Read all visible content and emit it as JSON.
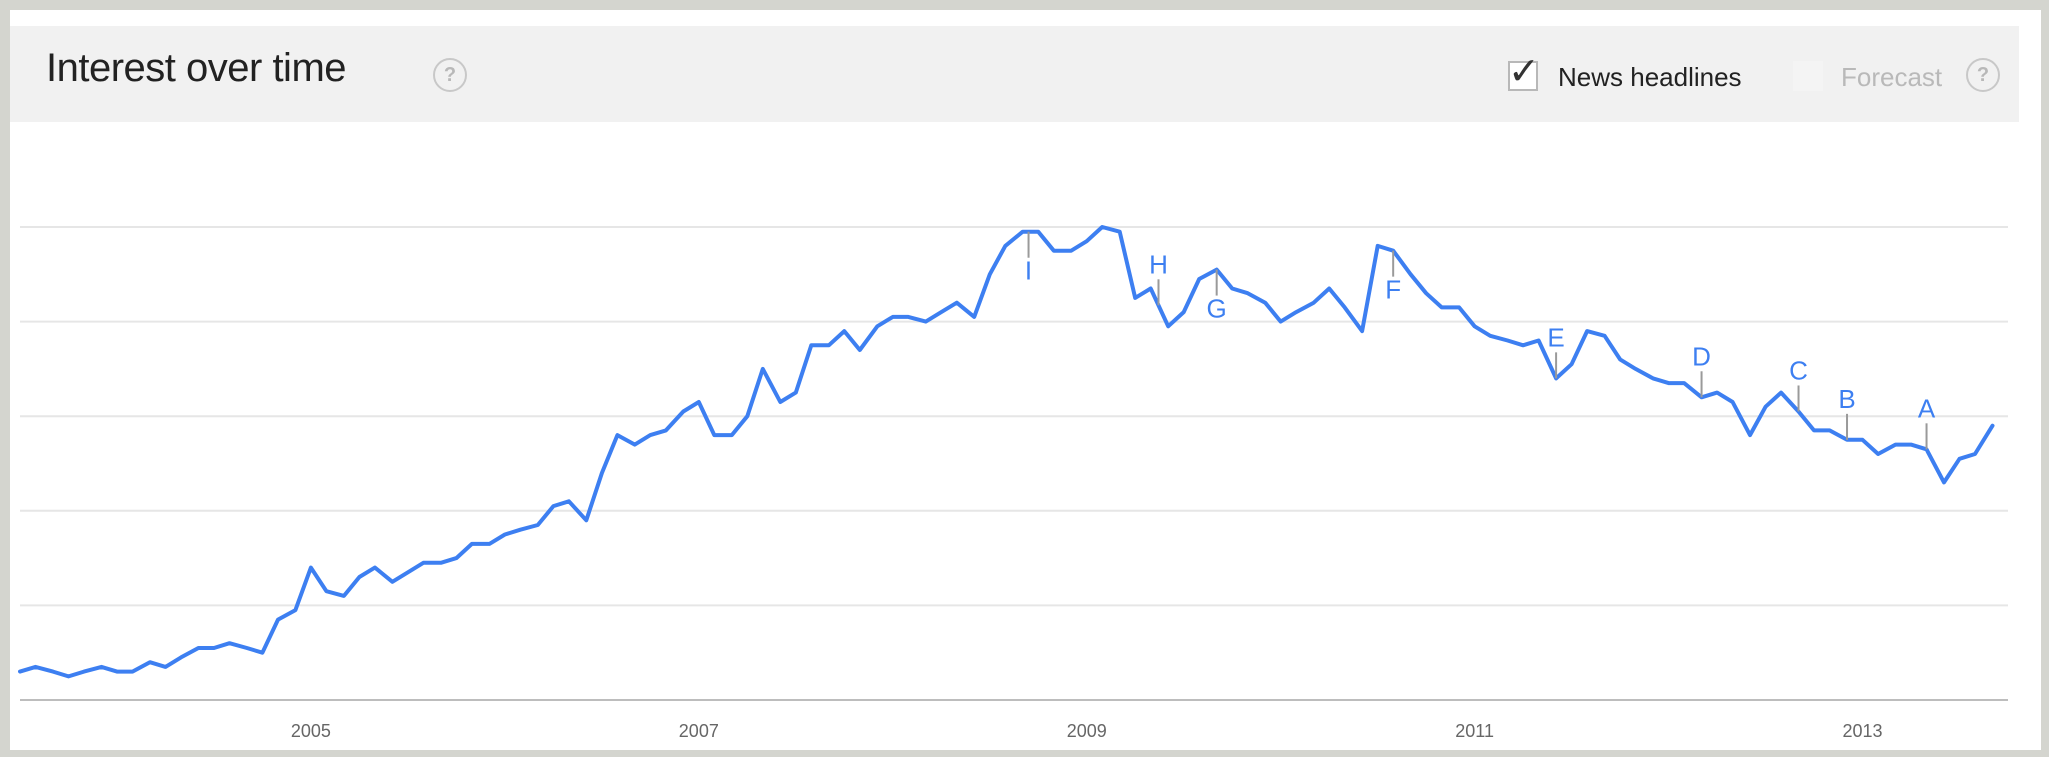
{
  "header": {
    "title": "Interest over time",
    "help_glyph": "?",
    "news_label": "News headlines",
    "news_checked": true,
    "forecast_label": "Forecast",
    "forecast_checked": false
  },
  "colors": {
    "line": "#3d7ff1",
    "marker_text": "#3d7ff1",
    "marker_stem": "#9a9a9a",
    "grid": "#e6e6e6",
    "header_bg": "#f1f1f1"
  },
  "chart_data": {
    "type": "line",
    "title": "Interest over time",
    "xlabel": "",
    "ylabel": "",
    "x_ticks": [
      "2005",
      "2007",
      "2009",
      "2011",
      "2013"
    ],
    "xlim": [
      2004.0,
      2014.25
    ],
    "ylim": [
      0,
      100
    ],
    "grid": true,
    "series": [
      {
        "values": [
          [
            2004.0,
            6
          ],
          [
            2004.08,
            7
          ],
          [
            2004.17,
            6
          ],
          [
            2004.25,
            5
          ],
          [
            2004.33,
            6
          ],
          [
            2004.42,
            7
          ],
          [
            2004.5,
            6
          ],
          [
            2004.58,
            6
          ],
          [
            2004.67,
            8
          ],
          [
            2004.75,
            7
          ],
          [
            2004.83,
            9
          ],
          [
            2004.92,
            11
          ],
          [
            2005.0,
            11
          ],
          [
            2005.08,
            12
          ],
          [
            2005.17,
            11
          ],
          [
            2005.25,
            10
          ],
          [
            2005.33,
            17
          ],
          [
            2005.42,
            19
          ],
          [
            2005.5,
            28
          ],
          [
            2005.58,
            23
          ],
          [
            2005.67,
            22
          ],
          [
            2005.75,
            26
          ],
          [
            2005.83,
            28
          ],
          [
            2005.92,
            25
          ],
          [
            2006.0,
            27
          ],
          [
            2006.08,
            29
          ],
          [
            2006.17,
            29
          ],
          [
            2006.25,
            30
          ],
          [
            2006.33,
            33
          ],
          [
            2006.42,
            33
          ],
          [
            2006.5,
            35
          ],
          [
            2006.58,
            36
          ],
          [
            2006.67,
            37
          ],
          [
            2006.75,
            41
          ],
          [
            2006.83,
            42
          ],
          [
            2006.92,
            38
          ],
          [
            2007.0,
            48
          ],
          [
            2007.08,
            56
          ],
          [
            2007.17,
            54
          ],
          [
            2007.25,
            56
          ],
          [
            2007.33,
            57
          ],
          [
            2007.42,
            61
          ],
          [
            2007.5,
            63
          ],
          [
            2007.58,
            56
          ],
          [
            2007.67,
            56
          ],
          [
            2007.75,
            60
          ],
          [
            2007.83,
            70
          ],
          [
            2007.92,
            63
          ],
          [
            2008.0,
            65
          ],
          [
            2008.08,
            75
          ],
          [
            2008.17,
            75
          ],
          [
            2008.25,
            78
          ],
          [
            2008.33,
            74
          ],
          [
            2008.42,
            79
          ],
          [
            2008.5,
            81
          ],
          [
            2008.58,
            81
          ],
          [
            2008.67,
            80
          ],
          [
            2008.75,
            82
          ],
          [
            2008.83,
            84
          ],
          [
            2008.92,
            81
          ],
          [
            2009.0,
            90
          ],
          [
            2009.08,
            96
          ],
          [
            2009.17,
            99
          ],
          [
            2009.25,
            99
          ],
          [
            2009.33,
            95
          ],
          [
            2009.42,
            95
          ],
          [
            2009.5,
            97
          ],
          [
            2009.58,
            100
          ],
          [
            2009.67,
            99
          ],
          [
            2009.75,
            85
          ],
          [
            2009.83,
            87
          ],
          [
            2009.92,
            79
          ],
          [
            2010.0,
            82
          ],
          [
            2010.08,
            89
          ],
          [
            2010.17,
            91
          ],
          [
            2010.25,
            87
          ],
          [
            2010.33,
            86
          ],
          [
            2010.42,
            84
          ],
          [
            2010.5,
            80
          ],
          [
            2010.58,
            82
          ],
          [
            2010.67,
            84
          ],
          [
            2010.75,
            87
          ],
          [
            2010.83,
            83
          ],
          [
            2010.92,
            78
          ],
          [
            2011.0,
            96
          ],
          [
            2011.08,
            95
          ],
          [
            2011.17,
            90
          ],
          [
            2011.25,
            86
          ],
          [
            2011.33,
            83
          ],
          [
            2011.42,
            83
          ],
          [
            2011.5,
            79
          ],
          [
            2011.58,
            77
          ],
          [
            2011.67,
            76
          ],
          [
            2011.75,
            75
          ],
          [
            2011.83,
            76
          ],
          [
            2011.92,
            68
          ],
          [
            2012.0,
            71
          ],
          [
            2012.08,
            78
          ],
          [
            2012.17,
            77
          ],
          [
            2012.25,
            72
          ],
          [
            2012.33,
            70
          ],
          [
            2012.42,
            68
          ],
          [
            2012.5,
            67
          ],
          [
            2012.58,
            67
          ],
          [
            2012.67,
            64
          ],
          [
            2012.75,
            65
          ],
          [
            2012.83,
            63
          ],
          [
            2012.92,
            56
          ],
          [
            2013.0,
            62
          ],
          [
            2013.08,
            65
          ],
          [
            2013.17,
            61
          ],
          [
            2013.25,
            57
          ],
          [
            2013.33,
            57
          ],
          [
            2013.42,
            55
          ],
          [
            2013.5,
            55
          ],
          [
            2013.58,
            52
          ],
          [
            2013.67,
            54
          ],
          [
            2013.75,
            54
          ],
          [
            2013.83,
            53
          ],
          [
            2013.92,
            46
          ],
          [
            2014.0,
            51
          ],
          [
            2014.08,
            52
          ],
          [
            2014.17,
            58
          ]
        ]
      }
    ],
    "annotations": [
      {
        "label": "I",
        "x": 2009.2,
        "position": "below"
      },
      {
        "label": "H",
        "x": 2009.87,
        "position": "above"
      },
      {
        "label": "G",
        "x": 2010.17,
        "position": "below"
      },
      {
        "label": "F",
        "x": 2011.08,
        "position": "below"
      },
      {
        "label": "E",
        "x": 2011.92,
        "position": "above"
      },
      {
        "label": "D",
        "x": 2012.67,
        "position": "above"
      },
      {
        "label": "C",
        "x": 2013.17,
        "position": "above"
      },
      {
        "label": "B",
        "x": 2013.42,
        "position": "above"
      },
      {
        "label": "A",
        "x": 2013.83,
        "position": "above"
      }
    ]
  }
}
